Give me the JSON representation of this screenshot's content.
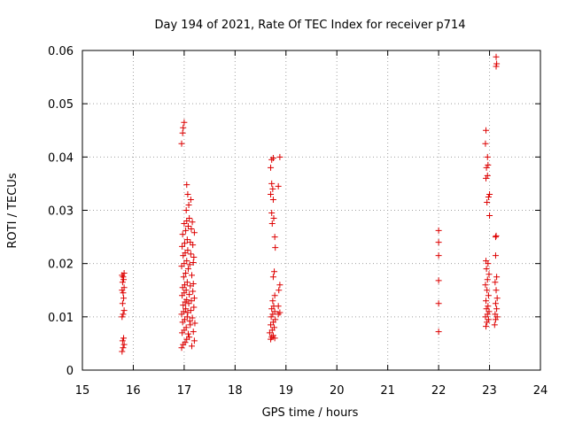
{
  "chart_data": {
    "type": "scatter",
    "title": "Day 194 of 2021, Rate Of TEC Index for receiver p714",
    "xlabel": "GPS time / hours",
    "ylabel": "ROTI / TECUs",
    "xlim": [
      15,
      24
    ],
    "ylim": [
      0,
      0.06
    ],
    "xticks": [
      "15",
      "16",
      "17",
      "18",
      "19",
      "20",
      "21",
      "22",
      "23",
      "24"
    ],
    "yticks": [
      "0",
      "0.01",
      "0.02",
      "0.03",
      "0.04",
      "0.05",
      "0.06"
    ],
    "grid": true,
    "marker": "+",
    "marker_color": "#dd0000",
    "series": [
      {
        "name": "ROTI",
        "points": [
          [
            15.78,
            0.0035
          ],
          [
            15.8,
            0.0042
          ],
          [
            15.82,
            0.0048
          ],
          [
            15.79,
            0.0055
          ],
          [
            15.81,
            0.006
          ],
          [
            15.78,
            0.01
          ],
          [
            15.8,
            0.0105
          ],
          [
            15.82,
            0.0112
          ],
          [
            15.79,
            0.0125
          ],
          [
            15.81,
            0.0135
          ],
          [
            15.8,
            0.0145
          ],
          [
            15.78,
            0.015
          ],
          [
            15.82,
            0.0155
          ],
          [
            15.79,
            0.0165
          ],
          [
            15.81,
            0.017
          ],
          [
            15.8,
            0.0175
          ],
          [
            15.82,
            0.0182
          ],
          [
            15.78,
            0.0178
          ],
          [
            16.95,
            0.0425
          ],
          [
            16.97,
            0.0445
          ],
          [
            16.98,
            0.0455
          ],
          [
            17.0,
            0.0465
          ],
          [
            16.95,
            0.0042
          ],
          [
            16.98,
            0.0048
          ],
          [
            17.02,
            0.0052
          ],
          [
            17.05,
            0.0058
          ],
          [
            17.1,
            0.0062
          ],
          [
            17.15,
            0.0045
          ],
          [
            17.2,
            0.0055
          ],
          [
            16.96,
            0.007
          ],
          [
            17.0,
            0.0075
          ],
          [
            17.04,
            0.008
          ],
          [
            17.08,
            0.0068
          ],
          [
            17.12,
            0.0085
          ],
          [
            17.18,
            0.0072
          ],
          [
            16.97,
            0.009
          ],
          [
            17.01,
            0.0095
          ],
          [
            17.06,
            0.01
          ],
          [
            17.11,
            0.0092
          ],
          [
            17.16,
            0.0098
          ],
          [
            17.21,
            0.0088
          ],
          [
            16.95,
            0.0105
          ],
          [
            16.99,
            0.011
          ],
          [
            17.03,
            0.0115
          ],
          [
            17.07,
            0.0108
          ],
          [
            17.13,
            0.0112
          ],
          [
            17.19,
            0.0118
          ],
          [
            16.98,
            0.0122
          ],
          [
            17.02,
            0.0128
          ],
          [
            17.05,
            0.0132
          ],
          [
            17.09,
            0.0125
          ],
          [
            17.14,
            0.013
          ],
          [
            17.2,
            0.0135
          ],
          [
            16.96,
            0.014
          ],
          [
            17.0,
            0.0145
          ],
          [
            17.04,
            0.015
          ],
          [
            17.1,
            0.0142
          ],
          [
            17.17,
            0.0148
          ],
          [
            16.97,
            0.0155
          ],
          [
            17.01,
            0.016
          ],
          [
            17.06,
            0.0165
          ],
          [
            17.12,
            0.0158
          ],
          [
            17.18,
            0.0162
          ],
          [
            16.99,
            0.0175
          ],
          [
            17.03,
            0.0182
          ],
          [
            17.08,
            0.019
          ],
          [
            17.15,
            0.0178
          ],
          [
            16.95,
            0.0195
          ],
          [
            17.0,
            0.02
          ],
          [
            17.05,
            0.0205
          ],
          [
            17.11,
            0.0198
          ],
          [
            17.18,
            0.0202
          ],
          [
            16.98,
            0.0215
          ],
          [
            17.02,
            0.022
          ],
          [
            17.07,
            0.0225
          ],
          [
            17.13,
            0.0218
          ],
          [
            17.19,
            0.0212
          ],
          [
            16.96,
            0.0232
          ],
          [
            17.01,
            0.0238
          ],
          [
            17.06,
            0.0245
          ],
          [
            17.12,
            0.024
          ],
          [
            17.17,
            0.0235
          ],
          [
            16.97,
            0.0255
          ],
          [
            17.03,
            0.0262
          ],
          [
            17.08,
            0.027
          ],
          [
            17.14,
            0.0265
          ],
          [
            17.2,
            0.0258
          ],
          [
            17.0,
            0.0275
          ],
          [
            17.05,
            0.028
          ],
          [
            17.1,
            0.0285
          ],
          [
            17.16,
            0.0278
          ],
          [
            17.04,
            0.03
          ],
          [
            17.09,
            0.031
          ],
          [
            17.13,
            0.032
          ],
          [
            17.07,
            0.033
          ],
          [
            17.05,
            0.0348
          ],
          [
            18.7,
            0.0058
          ],
          [
            18.72,
            0.0062
          ],
          [
            18.75,
            0.0065
          ],
          [
            18.78,
            0.006
          ],
          [
            18.68,
            0.007
          ],
          [
            18.73,
            0.0075
          ],
          [
            18.77,
            0.008
          ],
          [
            18.7,
            0.0085
          ],
          [
            18.75,
            0.009
          ],
          [
            18.79,
            0.0095
          ],
          [
            18.71,
            0.01
          ],
          [
            18.74,
            0.0105
          ],
          [
            18.78,
            0.011
          ],
          [
            18.85,
            0.0105
          ],
          [
            18.88,
            0.0108
          ],
          [
            18.72,
            0.0115
          ],
          [
            18.76,
            0.012
          ],
          [
            18.85,
            0.012
          ],
          [
            18.74,
            0.013
          ],
          [
            18.78,
            0.014
          ],
          [
            18.86,
            0.015
          ],
          [
            18.88,
            0.016
          ],
          [
            18.75,
            0.0175
          ],
          [
            18.77,
            0.0185
          ],
          [
            18.79,
            0.023
          ],
          [
            18.78,
            0.025
          ],
          [
            18.73,
            0.0275
          ],
          [
            18.76,
            0.0285
          ],
          [
            18.72,
            0.0295
          ],
          [
            18.75,
            0.032
          ],
          [
            18.7,
            0.033
          ],
          [
            18.74,
            0.034
          ],
          [
            18.72,
            0.035
          ],
          [
            18.85,
            0.0345
          ],
          [
            18.7,
            0.038
          ],
          [
            18.72,
            0.0395
          ],
          [
            18.75,
            0.0398
          ],
          [
            18.88,
            0.04
          ],
          [
            22.0,
            0.0072
          ],
          [
            22.0,
            0.0125
          ],
          [
            22.0,
            0.0168
          ],
          [
            22.0,
            0.0215
          ],
          [
            22.0,
            0.024
          ],
          [
            22.0,
            0.0262
          ],
          [
            22.93,
            0.0082
          ],
          [
            22.95,
            0.009
          ],
          [
            22.98,
            0.0095
          ],
          [
            22.92,
            0.01
          ],
          [
            22.96,
            0.0105
          ],
          [
            22.99,
            0.011
          ],
          [
            22.94,
            0.0115
          ],
          [
            22.97,
            0.012
          ],
          [
            22.93,
            0.013
          ],
          [
            22.98,
            0.014
          ],
          [
            22.95,
            0.015
          ],
          [
            22.92,
            0.016
          ],
          [
            22.96,
            0.017
          ],
          [
            22.99,
            0.018
          ],
          [
            22.94,
            0.019
          ],
          [
            22.97,
            0.02
          ],
          [
            22.93,
            0.0205
          ],
          [
            23.1,
            0.0085
          ],
          [
            23.12,
            0.0095
          ],
          [
            23.15,
            0.01
          ],
          [
            23.11,
            0.0105
          ],
          [
            23.14,
            0.0115
          ],
          [
            23.12,
            0.0125
          ],
          [
            23.15,
            0.0135
          ],
          [
            23.13,
            0.015
          ],
          [
            23.11,
            0.0165
          ],
          [
            23.14,
            0.0175
          ],
          [
            22.95,
            0.0315
          ],
          [
            22.98,
            0.0325
          ],
          [
            23.0,
            0.033
          ],
          [
            22.93,
            0.036
          ],
          [
            22.96,
            0.0365
          ],
          [
            22.94,
            0.038
          ],
          [
            22.97,
            0.0385
          ],
          [
            22.96,
            0.04
          ],
          [
            22.92,
            0.0425
          ],
          [
            22.93,
            0.045
          ],
          [
            23.0,
            0.029
          ],
          [
            23.12,
            0.025
          ],
          [
            23.13,
            0.0252
          ],
          [
            23.12,
            0.0215
          ],
          [
            23.13,
            0.057
          ],
          [
            23.14,
            0.0575
          ],
          [
            23.13,
            0.0588
          ]
        ]
      }
    ]
  }
}
